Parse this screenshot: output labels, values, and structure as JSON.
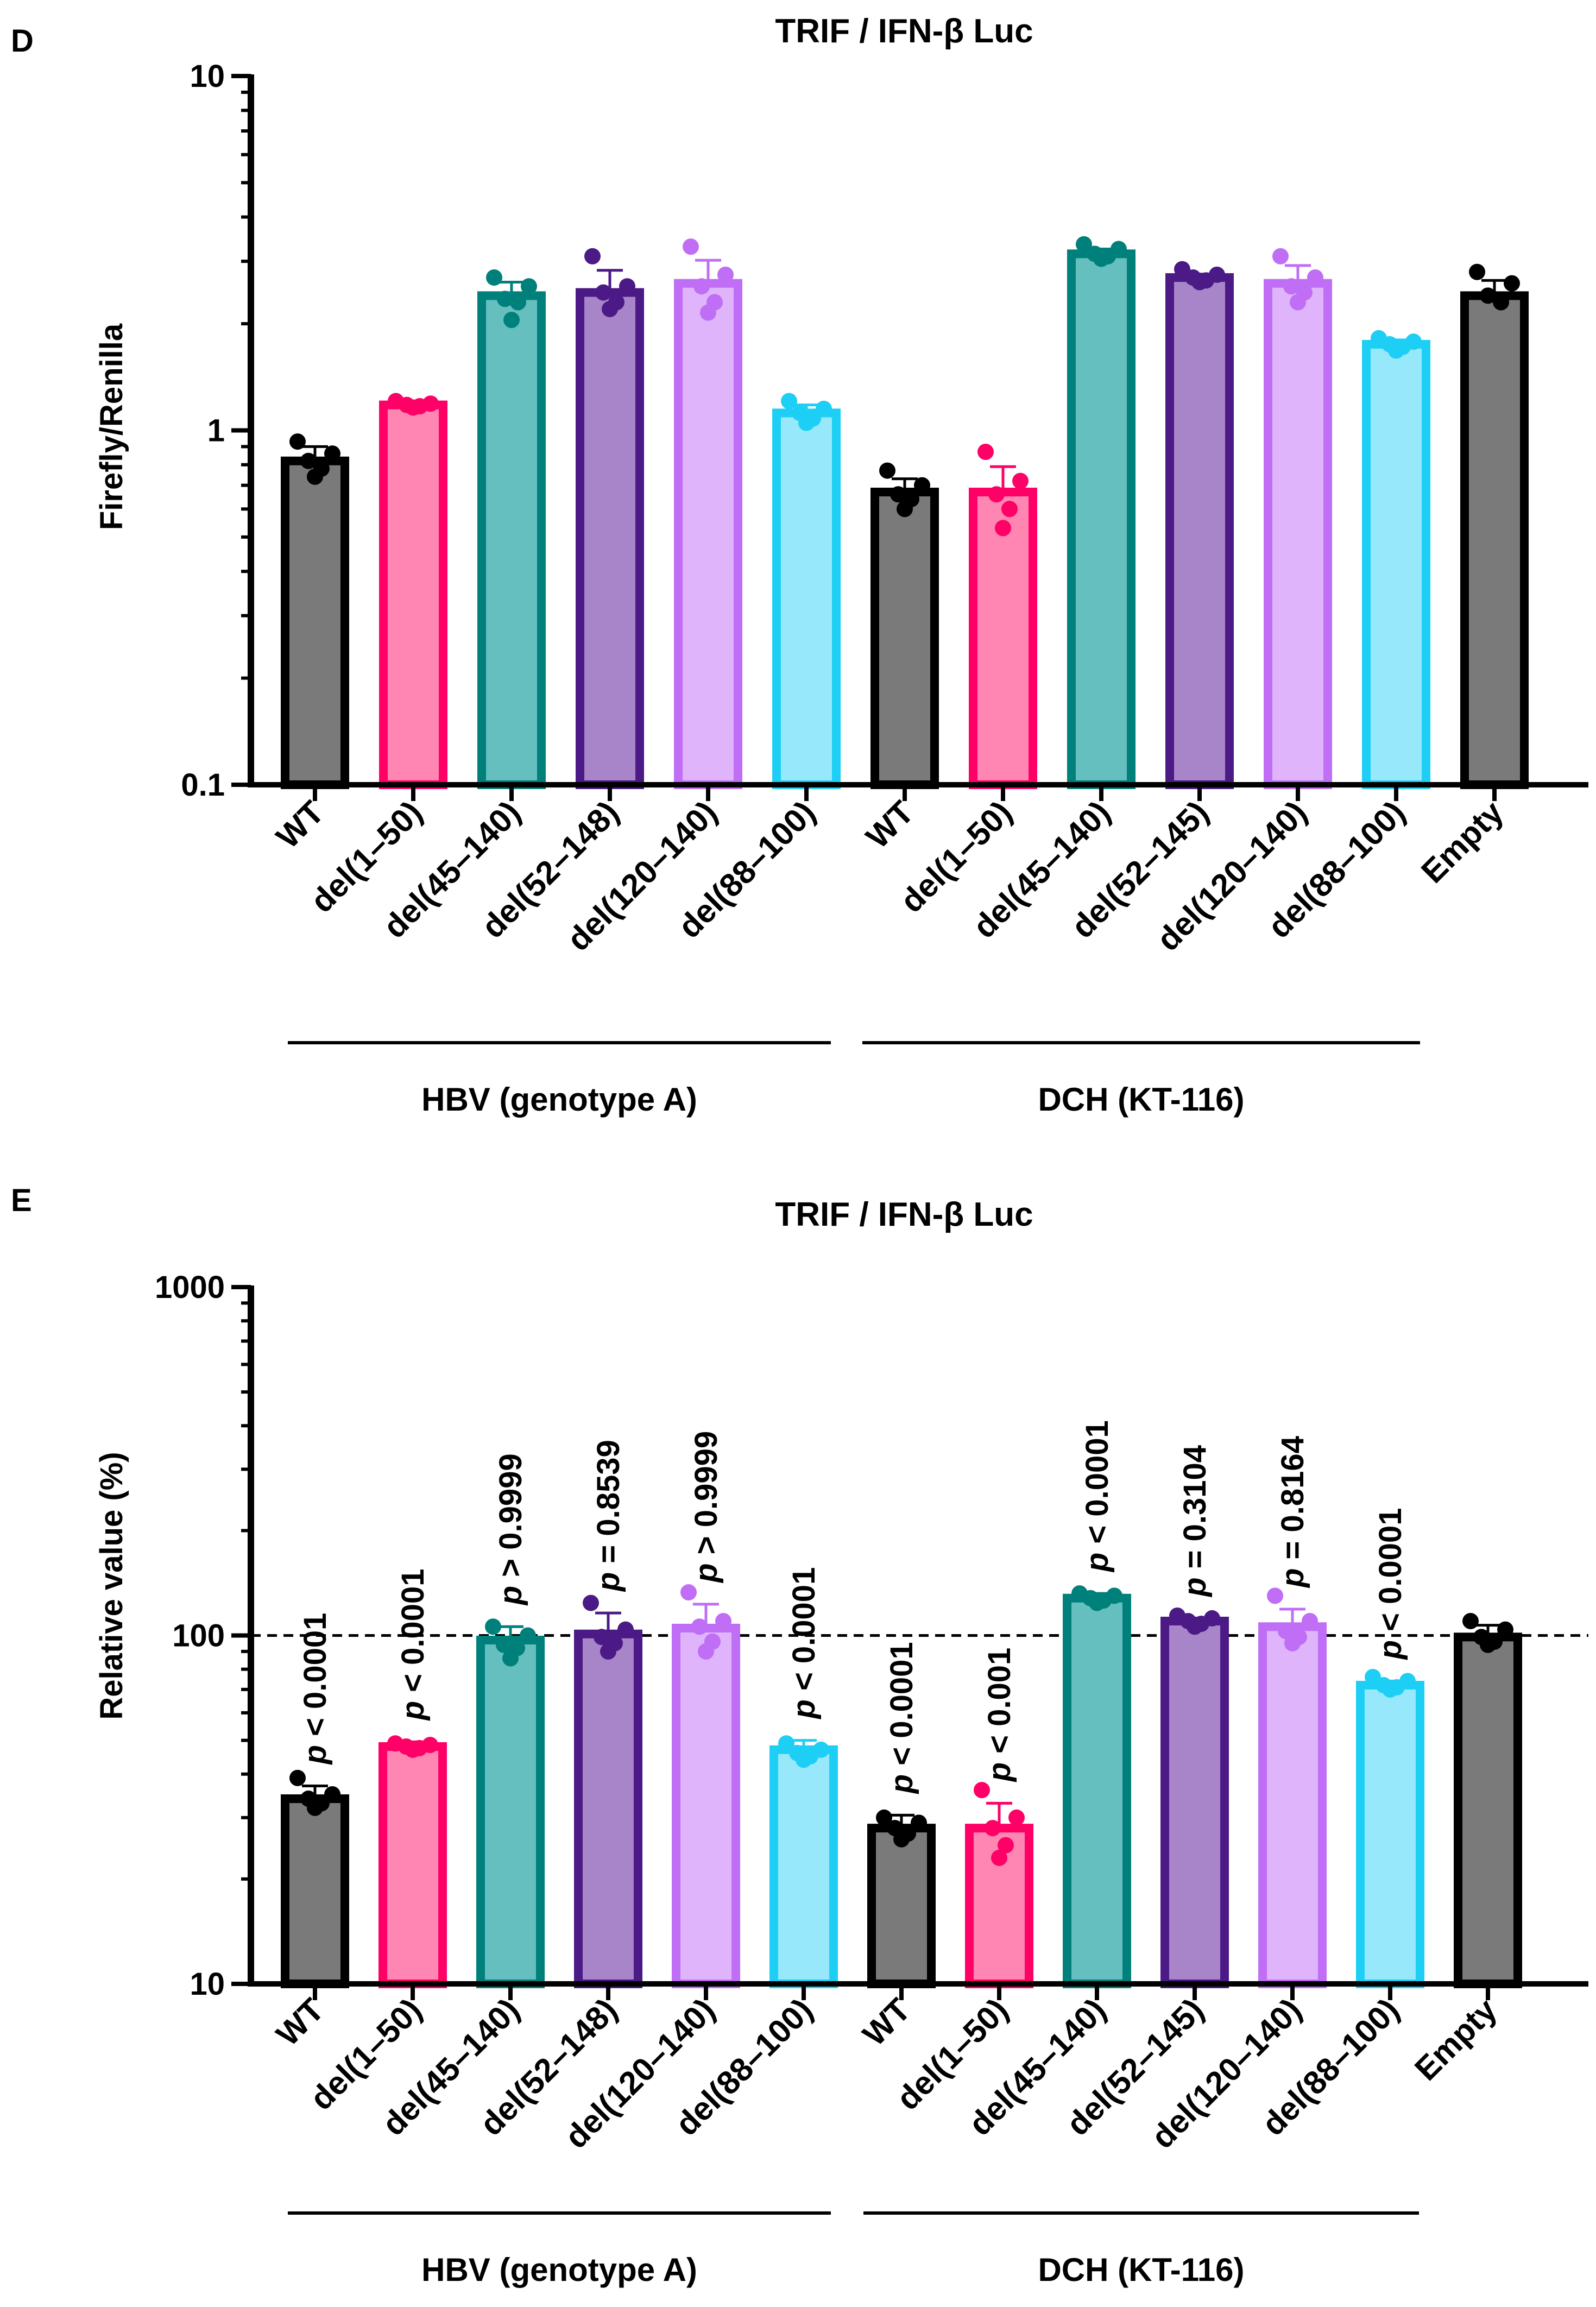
{
  "chart_data": [
    {
      "panel": "D",
      "type": "bar",
      "title": "TRIF / IFN-β Luc",
      "ylabel": "Firefly/Renilla",
      "yscale": "log",
      "ylim": [
        0.1,
        10
      ],
      "yticks": [
        "0.1",
        "1",
        "10"
      ],
      "ytick_values": [
        0.1,
        1,
        10
      ],
      "categories": [
        "WT",
        "del(1–50)",
        "del(45–140)",
        "del(52–148)",
        "del(120–140)",
        "del(88–100)",
        "WT",
        "del(1–50)",
        "del(45–140)",
        "del(52–145)",
        "del(120–140)",
        "del(88–100)",
        "Empty"
      ],
      "values": [
        0.82,
        1.18,
        2.4,
        2.45,
        2.6,
        1.12,
        0.67,
        0.67,
        3.15,
        2.7,
        2.6,
        1.75,
        2.4
      ],
      "errors": [
        0.08,
        0.03,
        0.22,
        0.38,
        0.42,
        0.06,
        0.06,
        0.12,
        0.1,
        0.06,
        0.32,
        0.05,
        0.25
      ],
      "points": [
        [
          0.93,
          0.86,
          0.82,
          0.78,
          0.74
        ],
        [
          1.21,
          1.19,
          1.18,
          1.17,
          1.16
        ],
        [
          2.7,
          2.55,
          2.35,
          2.3,
          2.05
        ],
        [
          3.1,
          2.55,
          2.45,
          2.3,
          2.2
        ],
        [
          3.3,
          2.75,
          2.55,
          2.3,
          2.15
        ],
        [
          1.21,
          1.15,
          1.12,
          1.08,
          1.05
        ],
        [
          0.77,
          0.7,
          0.66,
          0.64,
          0.6
        ],
        [
          0.87,
          0.72,
          0.66,
          0.6,
          0.53
        ],
        [
          3.35,
          3.25,
          3.15,
          3.1,
          3.05
        ],
        [
          2.85,
          2.75,
          2.7,
          2.65,
          2.62
        ],
        [
          3.1,
          2.7,
          2.55,
          2.45,
          2.3
        ],
        [
          1.82,
          1.78,
          1.75,
          1.72,
          1.68
        ],
        [
          2.8,
          2.6,
          2.4,
          2.3
        ]
      ],
      "groups": [
        {
          "label": "HBV (genotype A)",
          "from": 0,
          "to": 5
        },
        {
          "label": "DCH (KT-116)",
          "from": 6,
          "to": 11
        }
      ]
    },
    {
      "panel": "E",
      "type": "bar",
      "title": "TRIF / IFN-β Luc",
      "ylabel": "Relative value (%)",
      "yscale": "log",
      "ylim": [
        10,
        1000
      ],
      "yticks": [
        "10",
        "100",
        "1000"
      ],
      "ytick_values": [
        10,
        100,
        1000
      ],
      "reference_line": 100,
      "categories": [
        "WT",
        "del(1–50)",
        "del(45–140)",
        "del(52–148)",
        "del(120–140)",
        "del(88–100)",
        "WT",
        "del(1–50)",
        "del(45–140)",
        "del(52–145)",
        "del(120–140)",
        "del(88–100)",
        "Empty"
      ],
      "values": [
        34,
        48,
        97,
        101,
        105,
        47,
        28,
        28,
        128,
        110,
        106,
        72,
        99
      ],
      "errors": [
        3,
        1.5,
        9,
        15,
        18,
        3,
        2.5,
        5,
        4,
        2,
        13,
        2,
        8
      ],
      "points": [
        [
          39,
          35,
          34,
          33,
          32
        ],
        [
          49,
          48.5,
          48,
          47.5,
          47
        ],
        [
          106,
          100,
          94,
          92,
          86
        ],
        [
          124,
          104,
          99,
          95,
          90
        ],
        [
          133,
          110,
          106,
          96,
          90
        ],
        [
          49,
          47,
          46,
          45,
          44
        ],
        [
          30,
          29,
          28,
          27,
          26
        ],
        [
          36,
          30,
          28,
          25,
          23
        ],
        [
          132,
          130,
          128,
          126,
          124
        ],
        [
          114,
          112,
          110,
          108,
          106
        ],
        [
          130,
          110,
          103,
          99,
          95
        ],
        [
          76,
          74,
          72,
          71,
          70
        ],
        [
          110,
          104,
          99,
          96,
          94
        ]
      ],
      "pvalues": [
        {
          "label": "p < 0.0001",
          "color": "#ff0000"
        },
        {
          "label": "p < 0.0001",
          "color": "#ff0000"
        },
        {
          "label": "p > 0.9999",
          "color": "#000000"
        },
        {
          "label": "p = 0.8539",
          "color": "#000000"
        },
        {
          "label": "p > 0.9999",
          "color": "#000000"
        },
        {
          "label": "p < 0.0001",
          "color": "#ff0000"
        },
        {
          "label": "p < 0.0001",
          "color": "#ff0000"
        },
        {
          "label": "p < 0.001",
          "color": "#ff0000"
        },
        {
          "label": "p < 0.0001",
          "color": "#ff0000"
        },
        {
          "label": "p = 0.3104",
          "color": "#000000"
        },
        {
          "label": "p = 0.8164",
          "color": "#000000"
        },
        {
          "label": "p < 0.0001",
          "color": "#ff0000"
        },
        {
          "label": "",
          "color": "#000000"
        }
      ],
      "groups": [
        {
          "label": "HBV (genotype A)",
          "from": 0,
          "to": 5
        },
        {
          "label": "DCH (KT-116)",
          "from": 6,
          "to": 11
        }
      ]
    }
  ],
  "bar_colors": [
    {
      "fill": "#7a7a7a",
      "edge": "#000000"
    },
    {
      "fill": "#ff85b2",
      "edge": "#ff0066"
    },
    {
      "fill": "#66bfbf",
      "edge": "#00807b"
    },
    {
      "fill": "#a884c9",
      "edge": "#4b1a86"
    },
    {
      "fill": "#dfb4fb",
      "edge": "#bf6ef5"
    },
    {
      "fill": "#98e8fb",
      "edge": "#1ecff5"
    },
    {
      "fill": "#7a7a7a",
      "edge": "#000000"
    },
    {
      "fill": "#ff85b2",
      "edge": "#ff0066"
    },
    {
      "fill": "#66bfbf",
      "edge": "#00807b"
    },
    {
      "fill": "#a884c9",
      "edge": "#4b1a86"
    },
    {
      "fill": "#dfb4fb",
      "edge": "#bf6ef5"
    },
    {
      "fill": "#98e8fb",
      "edge": "#1ecff5"
    },
    {
      "fill": "#7a7a7a",
      "edge": "#000000"
    }
  ]
}
